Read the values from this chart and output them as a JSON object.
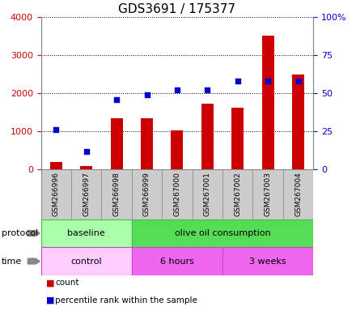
{
  "title": "GDS3691 / 175377",
  "samples": [
    "GSM266996",
    "GSM266997",
    "GSM266998",
    "GSM266999",
    "GSM267000",
    "GSM267001",
    "GSM267002",
    "GSM267003",
    "GSM267004"
  ],
  "counts": [
    200,
    100,
    1350,
    1340,
    1020,
    1720,
    1620,
    3520,
    2500
  ],
  "percentile_ranks": [
    26,
    12,
    46,
    49,
    52,
    52,
    58,
    58,
    58
  ],
  "count_color": "#cc0000",
  "percentile_color": "#0000cc",
  "ylim_left": [
    0,
    4000
  ],
  "ylim_right": [
    0,
    100
  ],
  "yticks_left": [
    0,
    1000,
    2000,
    3000,
    4000
  ],
  "ytick_labels_left": [
    "0",
    "1000",
    "2000",
    "3000",
    "4000"
  ],
  "yticks_right": [
    0,
    25,
    50,
    75,
    100
  ],
  "ytick_labels_right": [
    "0",
    "25",
    "50",
    "75",
    "100%"
  ],
  "grid_color": "#000000",
  "protocol_groups": [
    {
      "text": "baseline",
      "start": 0,
      "end": 3,
      "color": "#aaffaa",
      "border": "#44bb44"
    },
    {
      "text": "olive oil consumption",
      "start": 3,
      "end": 9,
      "color": "#55dd55",
      "border": "#44bb44"
    }
  ],
  "time_groups": [
    {
      "text": "control",
      "start": 0,
      "end": 3,
      "color": "#ffccff",
      "border": "#cc44cc"
    },
    {
      "text": "6 hours",
      "start": 3,
      "end": 6,
      "color": "#ee66ee",
      "border": "#cc44cc"
    },
    {
      "text": "3 weeks",
      "start": 6,
      "end": 9,
      "color": "#ee66ee",
      "border": "#cc44cc"
    }
  ],
  "legend_items": [
    {
      "label": "count",
      "color": "#cc0000"
    },
    {
      "label": "percentile rank within the sample",
      "color": "#0000cc"
    }
  ],
  "background_color": "#ffffff",
  "tick_label_bg": "#cccccc",
  "bar_width": 0.4
}
